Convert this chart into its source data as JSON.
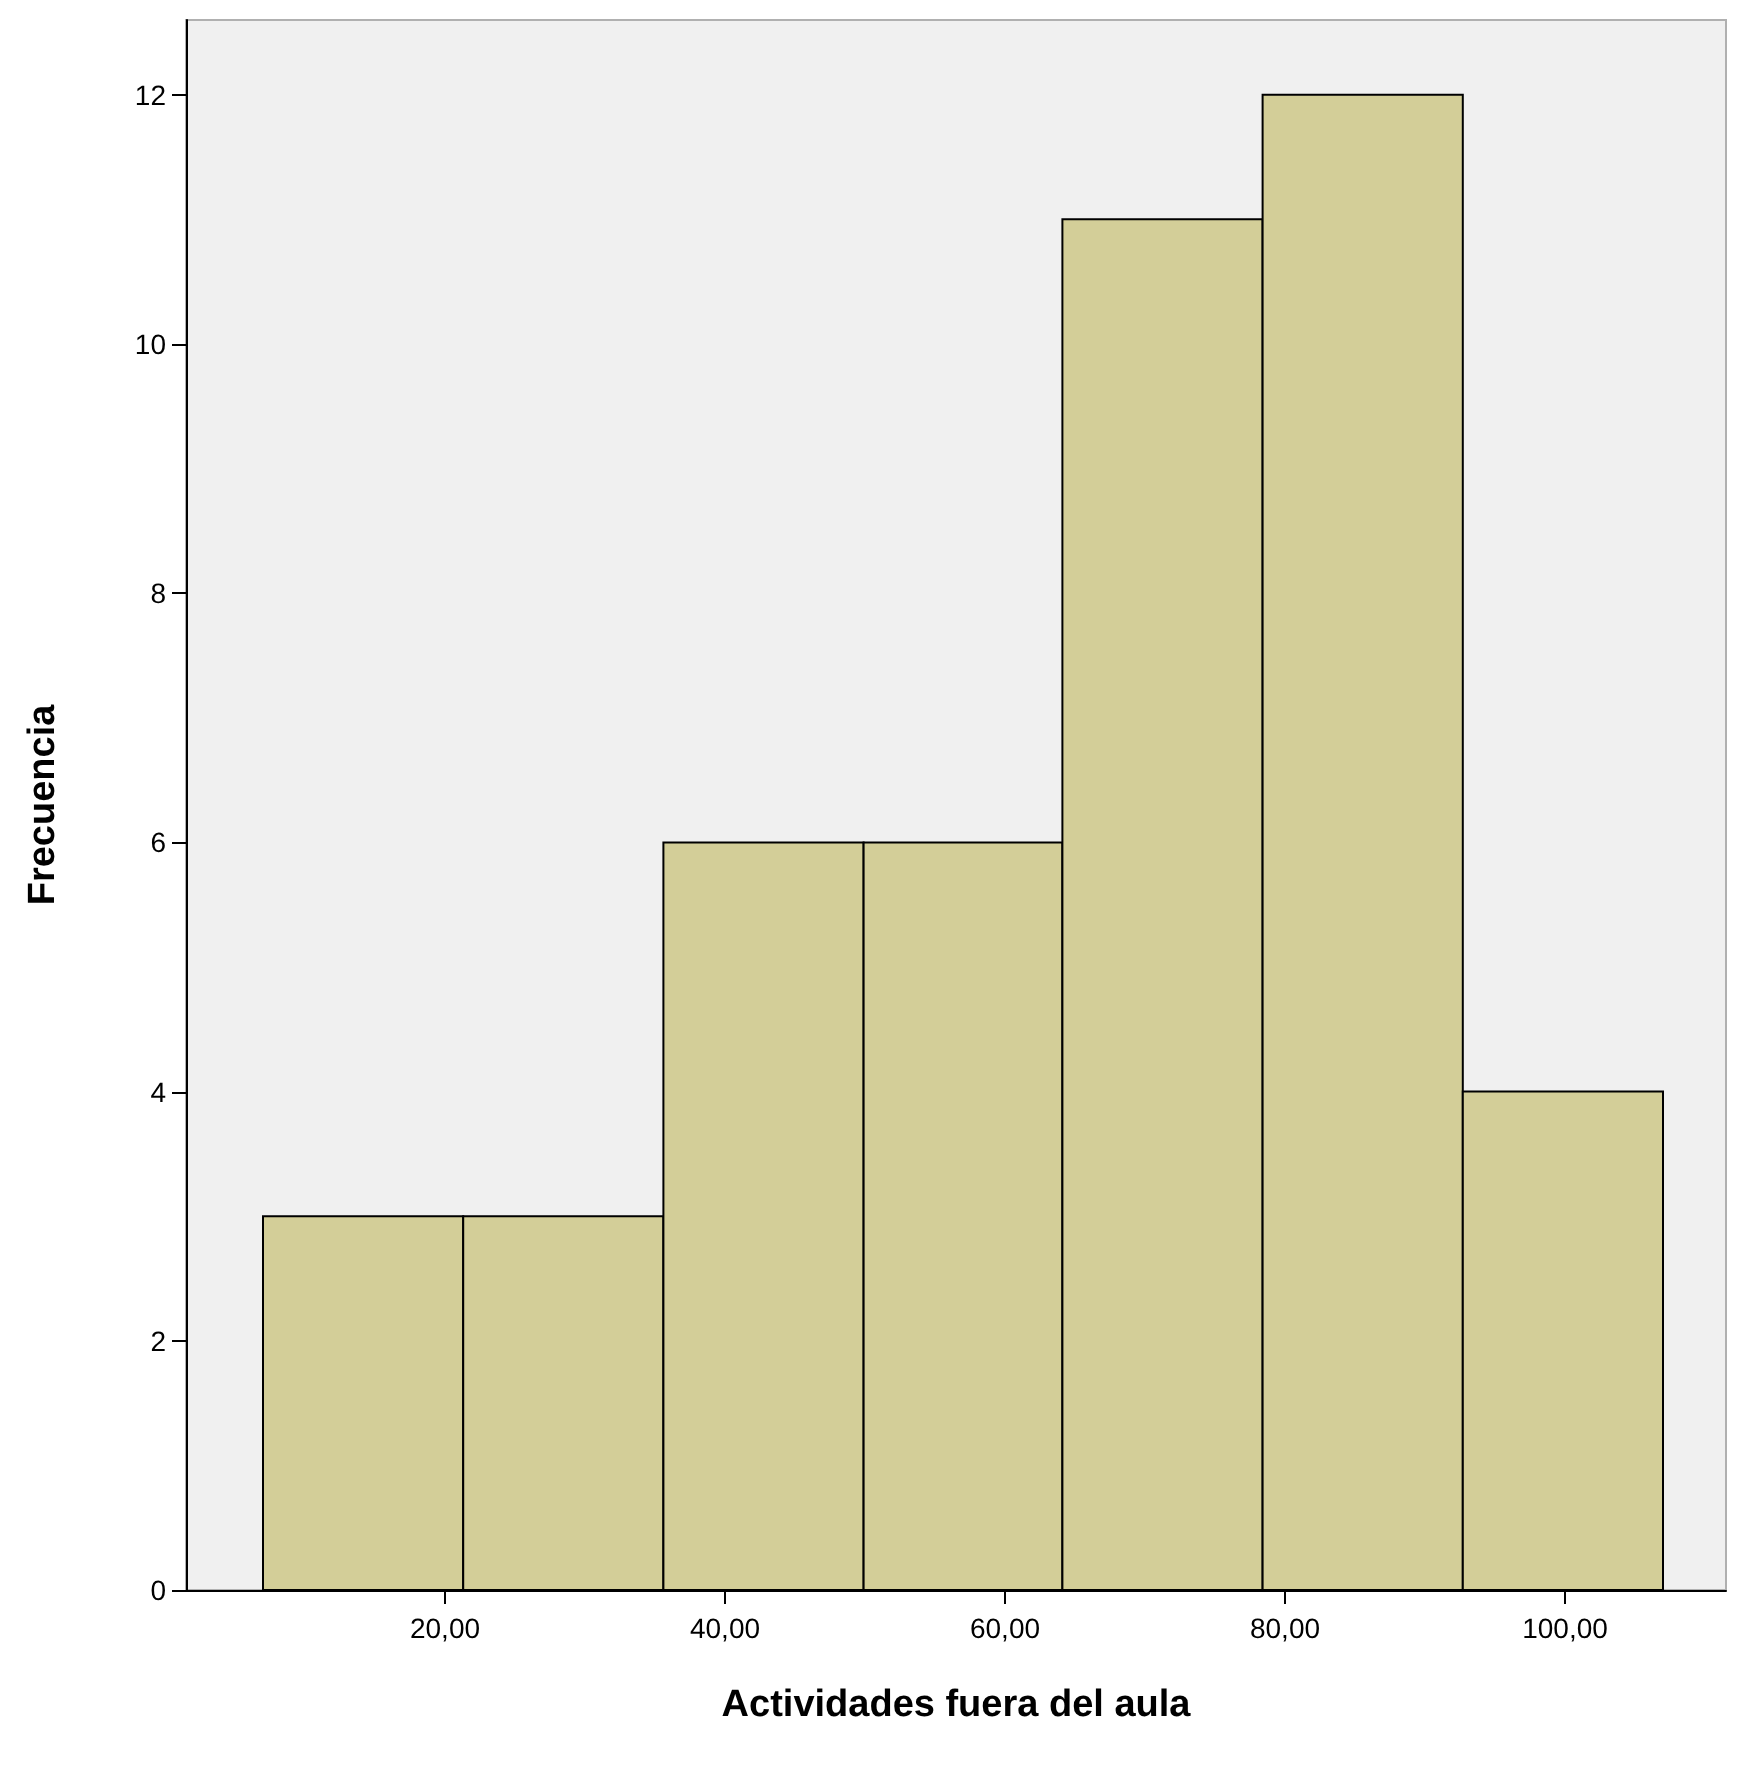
{
  "chart_data": {
    "type": "histogram",
    "xlabel": "Actividades fuera del aula",
    "ylabel": "Frecuencia",
    "bins": [
      7,
      21.3,
      35.6,
      49.9,
      64.1,
      78.4,
      92.7,
      107
    ],
    "values": [
      3,
      3,
      6,
      6,
      11,
      12,
      4
    ],
    "color": "#d3ce98",
    "xlim": [
      1.5,
      111.5
    ],
    "xticks": [
      {
        "value": 20,
        "label": "20,00"
      },
      {
        "value": 40,
        "label": "40,00"
      },
      {
        "value": 60,
        "label": "60,00"
      },
      {
        "value": 80,
        "label": "80,00"
      },
      {
        "value": 100,
        "label": "100,00"
      }
    ],
    "ylim": [
      0,
      12.6
    ],
    "yticks": [
      0,
      2,
      4,
      6,
      8,
      10,
      12
    ],
    "grid": false
  }
}
